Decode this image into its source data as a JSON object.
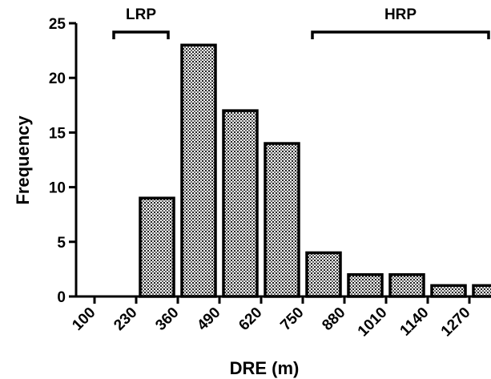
{
  "chart_data": {
    "type": "bar",
    "categories": [
      "100",
      "230",
      "360",
      "490",
      "620",
      "750",
      "880",
      "1010",
      "1140",
      "1270"
    ],
    "values": [
      0,
      9,
      23,
      17,
      14,
      4,
      2,
      2,
      1,
      1
    ],
    "xlabel": "DRE (m)",
    "ylabel": "Frequency",
    "ylim": [
      0,
      25
    ],
    "yticks": [
      0,
      5,
      10,
      15,
      20,
      25
    ],
    "grid": false,
    "annotations": [
      {
        "label": "LRP",
        "from_x": 160,
        "to_x": 330
      },
      {
        "label": "HRP",
        "from_x": 780,
        "to_x": 1340
      }
    ]
  }
}
